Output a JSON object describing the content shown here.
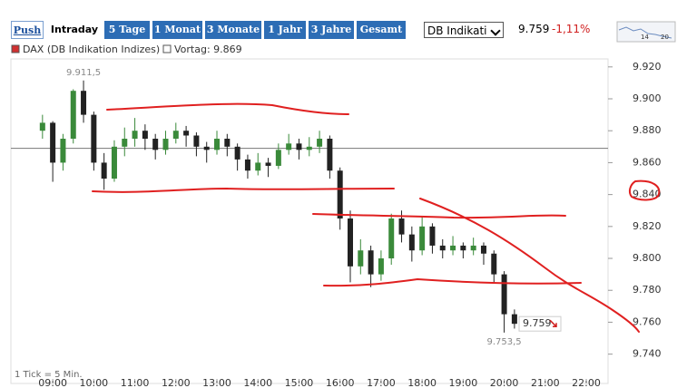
{
  "toolbar": {
    "buttons": [
      "Push",
      "Intraday",
      "5 Tage",
      "1 Monat",
      "3 Monate",
      "1 Jahr",
      "3 Jahre",
      "Gesamt"
    ]
  },
  "selector": "DB Indikati",
  "quote": {
    "price": "9.759",
    "change": "-1,11%"
  },
  "thumbnail_labels": [
    "14",
    "20"
  ],
  "chart_data": {
    "type": "candlestick",
    "series_name": "DAX (DB Indikation Indizes)",
    "note": "1 Tick = 5 Min.",
    "colors": {
      "series": "#d03030",
      "up": "#3a8a3a",
      "down": "#222222",
      "previous": "#777777"
    },
    "previous_close": {
      "value": 9869,
      "label": "Vortag: 9.869"
    },
    "last_label": {
      "value": 9759,
      "label": "9.759"
    },
    "annotations": [
      {
        "x": "09:45",
        "value": 9911.5,
        "label": "9.911,5"
      },
      {
        "x": "20:00",
        "value": 9753.5,
        "label": "9.753,5"
      }
    ],
    "x": [
      "08:45",
      "09:00",
      "09:15",
      "09:30",
      "09:45",
      "10:00",
      "10:15",
      "10:30",
      "10:45",
      "11:00",
      "11:15",
      "11:30",
      "11:45",
      "12:00",
      "12:15",
      "12:30",
      "12:45",
      "13:00",
      "13:15",
      "13:30",
      "13:45",
      "14:00",
      "14:15",
      "14:30",
      "14:45",
      "15:00",
      "15:15",
      "15:30",
      "15:45",
      "16:00",
      "16:15",
      "16:30",
      "16:45",
      "17:00",
      "17:15",
      "17:30",
      "17:45",
      "18:00",
      "18:15",
      "18:30",
      "18:45",
      "19:00",
      "19:15",
      "19:30",
      "19:45",
      "20:00",
      "20:15"
    ],
    "candles": [
      [
        9880,
        9890,
        9875,
        9885
      ],
      [
        9885,
        9886,
        9848,
        9860
      ],
      [
        9860,
        9878,
        9855,
        9875
      ],
      [
        9875,
        9906,
        9872,
        9905
      ],
      [
        9905,
        9911.5,
        9885,
        9890
      ],
      [
        9890,
        9892,
        9855,
        9860
      ],
      [
        9860,
        9866,
        9843,
        9850
      ],
      [
        9850,
        9874,
        9848,
        9870
      ],
      [
        9870,
        9882,
        9864,
        9875
      ],
      [
        9875,
        9888,
        9870,
        9880
      ],
      [
        9880,
        9884,
        9868,
        9875
      ],
      [
        9875,
        9878,
        9862,
        9868
      ],
      [
        9868,
        9880,
        9865,
        9875
      ],
      [
        9875,
        9885,
        9872,
        9880
      ],
      [
        9880,
        9883,
        9870,
        9877
      ],
      [
        9877,
        9879,
        9864,
        9870
      ],
      [
        9870,
        9873,
        9860,
        9868
      ],
      [
        9868,
        9880,
        9865,
        9875
      ],
      [
        9875,
        9878,
        9864,
        9870
      ],
      [
        9870,
        9872,
        9855,
        9862
      ],
      [
        9862,
        9865,
        9850,
        9855
      ],
      [
        9855,
        9866,
        9852,
        9860
      ],
      [
        9860,
        9863,
        9851,
        9858
      ],
      [
        9858,
        9872,
        9856,
        9868
      ],
      [
        9868,
        9878,
        9865,
        9872
      ],
      [
        9872,
        9875,
        9862,
        9868
      ],
      [
        9868,
        9876,
        9864,
        9870
      ],
      [
        9870,
        9880,
        9866,
        9875
      ],
      [
        9875,
        9877,
        9850,
        9855
      ],
      [
        9855,
        9857,
        9818,
        9825
      ],
      [
        9825,
        9830,
        9785,
        9795
      ],
      [
        9795,
        9812,
        9790,
        9805
      ],
      [
        9805,
        9808,
        9782,
        9790
      ],
      [
        9790,
        9805,
        9786,
        9800
      ],
      [
        9800,
        9828,
        9796,
        9825
      ],
      [
        9825,
        9830,
        9810,
        9815
      ],
      [
        9815,
        9820,
        9798,
        9805
      ],
      [
        9805,
        9826,
        9802,
        9820
      ],
      [
        9820,
        9822,
        9803,
        9808
      ],
      [
        9808,
        9812,
        9800,
        9805
      ],
      [
        9805,
        9814,
        9802,
        9808
      ],
      [
        9808,
        9810,
        9800,
        9805
      ],
      [
        9805,
        9813,
        9802,
        9808
      ],
      [
        9808,
        9810,
        9796,
        9803
      ],
      [
        9803,
        9805,
        9785,
        9790
      ],
      [
        9790,
        9792,
        9753.5,
        9765
      ],
      [
        9765,
        9768,
        9756,
        9759
      ]
    ],
    "xlim": [
      7.98,
      22.53
    ],
    "xticks": [
      {
        "value": 9,
        "label": "09:00"
      },
      {
        "value": 10,
        "label": "10:00"
      },
      {
        "value": 11,
        "label": "11:00"
      },
      {
        "value": 12,
        "label": "12:00"
      },
      {
        "value": 13,
        "label": "13:00"
      },
      {
        "value": 14,
        "label": "14:00"
      },
      {
        "value": 15,
        "label": "15:00"
      },
      {
        "value": 16,
        "label": "16:00"
      },
      {
        "value": 17,
        "label": "17:00"
      },
      {
        "value": 18,
        "label": "18:00"
      },
      {
        "value": 19,
        "label": "19:00"
      },
      {
        "value": 20,
        "label": "20:00"
      },
      {
        "value": 21,
        "label": "21:00"
      },
      {
        "value": 22,
        "label": "22:00"
      }
    ],
    "ylim": [
      9729,
      9925
    ],
    "yticks": [
      {
        "value": 9740,
        "label": "9.740"
      },
      {
        "value": 9760,
        "label": "9.760"
      },
      {
        "value": 9780,
        "label": "9.780"
      },
      {
        "value": 9800,
        "label": "9.800"
      },
      {
        "value": 9820,
        "label": "9.820"
      },
      {
        "value": 9840,
        "label": "9.840"
      },
      {
        "value": 9860,
        "label": "9.860"
      },
      {
        "value": 9880,
        "label": "9.880"
      },
      {
        "value": 9900,
        "label": "9.900"
      },
      {
        "value": 9920,
        "label": "9.920"
      }
    ]
  }
}
